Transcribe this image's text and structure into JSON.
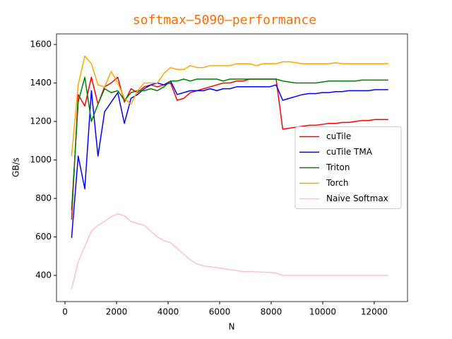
{
  "chart_data": {
    "type": "line",
    "title": "softmax‒5090‒performance",
    "x_label": "N",
    "y_label": "GB/s",
    "x": [
      256,
      512,
      768,
      1024,
      1280,
      1536,
      1792,
      2048,
      2304,
      2560,
      2816,
      3072,
      3328,
      3584,
      3840,
      4096,
      4352,
      4608,
      4864,
      5120,
      5376,
      5632,
      5888,
      6144,
      6400,
      6656,
      6912,
      7168,
      7424,
      7680,
      7936,
      8192,
      8448,
      8704,
      8960,
      9216,
      9472,
      9728,
      9984,
      10240,
      10496,
      10752,
      11008,
      11264,
      11520,
      11776,
      12032,
      12288,
      12544
    ],
    "series": [
      {
        "name": "cuTile",
        "color": "#ff0000",
        "values": [
          690,
          1340,
          1280,
          1430,
          1290,
          1380,
          1400,
          1430,
          1300,
          1370,
          1350,
          1380,
          1390,
          1380,
          1390,
          1400,
          1310,
          1320,
          1350,
          1360,
          1370,
          1380,
          1390,
          1400,
          1400,
          1410,
          1410,
          1420,
          1420,
          1420,
          1420,
          1420,
          1160,
          1165,
          1170,
          1175,
          1180,
          1180,
          1185,
          1190,
          1190,
          1195,
          1195,
          1200,
          1205,
          1205,
          1210,
          1210,
          1210
        ]
      },
      {
        "name": "cuTile TMA",
        "color": "#0000ff",
        "values": [
          595,
          1020,
          850,
          1360,
          1020,
          1250,
          1300,
          1350,
          1190,
          1320,
          1340,
          1370,
          1390,
          1400,
          1390,
          1410,
          1340,
          1350,
          1360,
          1360,
          1360,
          1370,
          1360,
          1370,
          1370,
          1380,
          1380,
          1380,
          1380,
          1380,
          1380,
          1390,
          1310,
          1320,
          1330,
          1340,
          1345,
          1345,
          1350,
          1350,
          1355,
          1355,
          1360,
          1360,
          1360,
          1360,
          1365,
          1365,
          1365
        ]
      },
      {
        "name": "Triton",
        "color": "#008000",
        "values": [
          740,
          1300,
          1430,
          1200,
          1290,
          1370,
          1350,
          1360,
          1310,
          1350,
          1360,
          1360,
          1370,
          1360,
          1380,
          1410,
          1410,
          1420,
          1410,
          1420,
          1420,
          1420,
          1420,
          1410,
          1420,
          1420,
          1420,
          1420,
          1420,
          1420,
          1420,
          1420,
          1410,
          1405,
          1400,
          1400,
          1400,
          1400,
          1405,
          1410,
          1410,
          1410,
          1410,
          1410,
          1415,
          1415,
          1415,
          1415,
          1415
        ]
      },
      {
        "name": "Torch",
        "color": "#ffa500",
        "values": [
          1020,
          1390,
          1540,
          1500,
          1390,
          1380,
          1460,
          1400,
          1320,
          1290,
          1360,
          1400,
          1400,
          1400,
          1450,
          1480,
          1470,
          1470,
          1490,
          1480,
          1480,
          1490,
          1490,
          1490,
          1490,
          1500,
          1500,
          1500,
          1490,
          1500,
          1500,
          1500,
          1510,
          1510,
          1505,
          1500,
          1500,
          1500,
          1500,
          1500,
          1505,
          1500,
          1500,
          1500,
          1500,
          1500,
          1500,
          1500,
          1500
        ]
      },
      {
        "name": "Naive Softmax",
        "color": "#ffc0cb",
        "values": [
          330,
          470,
          550,
          630,
          660,
          680,
          705,
          720,
          710,
          680,
          670,
          660,
          630,
          600,
          580,
          570,
          540,
          510,
          480,
          460,
          450,
          445,
          440,
          435,
          430,
          425,
          420,
          420,
          418,
          417,
          415,
          412,
          400,
          400,
          400,
          400,
          400,
          400,
          400,
          400,
          400,
          400,
          400,
          400,
          400,
          400,
          400,
          400,
          400
        ]
      }
    ],
    "xlim": [
      -330,
      13290
    ],
    "ylim": [
      264,
      1655
    ],
    "xticks": [
      0,
      2000,
      4000,
      6000,
      8000,
      10000,
      12000
    ],
    "yticks": [
      400,
      600,
      800,
      1000,
      1200,
      1400,
      1600
    ],
    "legend": "center right"
  }
}
